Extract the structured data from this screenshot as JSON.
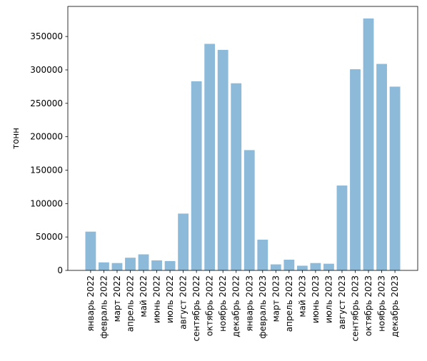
{
  "chart_data": {
    "type": "bar",
    "title": "",
    "xlabel": "",
    "ylabel": "тонн",
    "ylim": [
      0,
      395000
    ],
    "yticks": [
      0,
      50000,
      100000,
      150000,
      200000,
      250000,
      300000,
      350000
    ],
    "yticks_labels": [
      "0",
      "50000",
      "100000",
      "150000",
      "200000",
      "250000",
      "300000",
      "350000"
    ],
    "grid": false,
    "legend": "none",
    "bar_color": "#8ebad9",
    "categories": [
      "январь 2022",
      "февраль 2022",
      "март 2022",
      "апрель 2022",
      "май 2022",
      "июнь 2022",
      "июль 2022",
      "август 2022",
      "сентябрь 2022",
      "октябрь 2022",
      "ноябрь 2022",
      "декабрь 2022",
      "январь 2023",
      "февраль 2023",
      "март 2023",
      "апрель 2023",
      "май 2023",
      "июнь 2023",
      "июль 2023",
      "август 2023",
      "сентябрь 2023",
      "октябрь 2023",
      "ноябрь 2023",
      "декабрь 2023"
    ],
    "values": [
      58000,
      12000,
      11000,
      19000,
      24000,
      15000,
      14000,
      85000,
      283000,
      339000,
      330000,
      280000,
      180000,
      46000,
      9000,
      16000,
      7000,
      11000,
      10000,
      127000,
      301000,
      377000,
      309000,
      275000
    ]
  }
}
